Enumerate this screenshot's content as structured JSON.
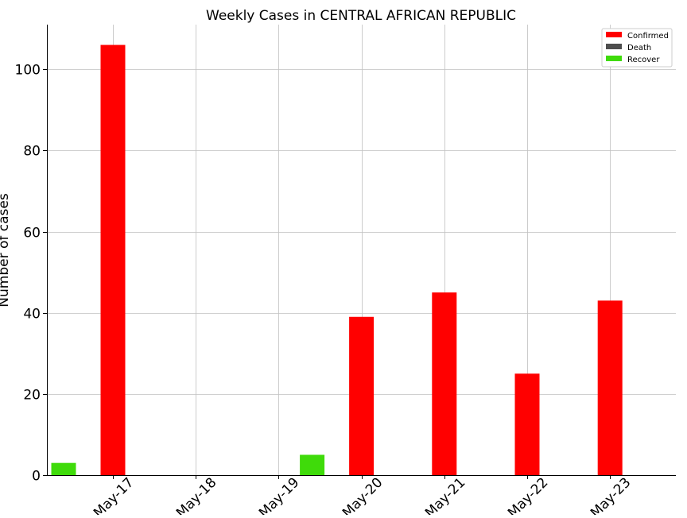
{
  "chart_data": {
    "type": "bar",
    "title": "Weekly Cases in CENTRAL AFRICAN REPUBLIC",
    "xlabel": "",
    "ylabel": "Number of cases",
    "categories": [
      "May-17",
      "May-18",
      "May-19",
      "May-20",
      "May-21",
      "May-22",
      "May-23"
    ],
    "series": [
      {
        "name": "Confirmed",
        "color": "#ff0000",
        "values": [
          106,
          0,
          0,
          39,
          45,
          25,
          43
        ]
      },
      {
        "name": "Death",
        "color": "#4d4d4d",
        "values": [
          0,
          0,
          0,
          0,
          0,
          0,
          0
        ]
      },
      {
        "name": "Recover",
        "color": "#3fdb0a",
        "values": [
          3,
          0,
          0,
          5,
          0,
          0,
          0
        ]
      }
    ],
    "ylim": [
      0,
      111
    ],
    "yticks": [
      0,
      20,
      40,
      60,
      80,
      100
    ],
    "grid": true,
    "legend_position": "top-right"
  }
}
